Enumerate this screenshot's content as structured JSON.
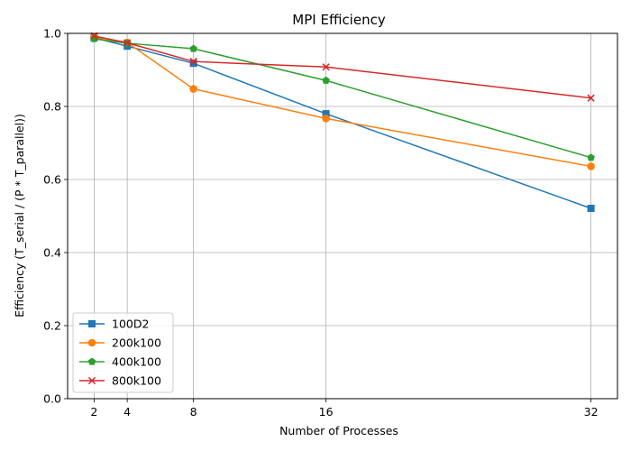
{
  "chart_data": {
    "type": "line",
    "title": "MPI Efficiency",
    "xlabel": "Number of Processes",
    "ylabel": "Efficiency (T_serial / (P * T_parallel))",
    "x": [
      2,
      4,
      8,
      16,
      32
    ],
    "x_ticks": [
      "2",
      "4",
      "8",
      "16",
      "32"
    ],
    "xlim": [
      0.4,
      33.6
    ],
    "ylim": [
      0,
      1
    ],
    "y_ticks": [
      "0.0",
      "0.2",
      "0.4",
      "0.6",
      "0.8",
      "1.0"
    ],
    "grid": true,
    "legend_position": "lower-left",
    "series": [
      {
        "name": "100D2",
        "color": "#1f77b4",
        "marker": "square",
        "values": [
          0.988,
          0.965,
          0.918,
          0.78,
          0.521
        ]
      },
      {
        "name": "200k100",
        "color": "#ff7f0e",
        "marker": "circle",
        "values": [
          0.99,
          0.975,
          0.848,
          0.767,
          0.636
        ]
      },
      {
        "name": "400k100",
        "color": "#2ca02c",
        "marker": "pentagon",
        "values": [
          0.985,
          0.973,
          0.958,
          0.871,
          0.66
        ]
      },
      {
        "name": "800k100",
        "color": "#d62728",
        "marker": "x",
        "values": [
          0.993,
          0.974,
          0.923,
          0.908,
          0.823
        ]
      }
    ]
  }
}
